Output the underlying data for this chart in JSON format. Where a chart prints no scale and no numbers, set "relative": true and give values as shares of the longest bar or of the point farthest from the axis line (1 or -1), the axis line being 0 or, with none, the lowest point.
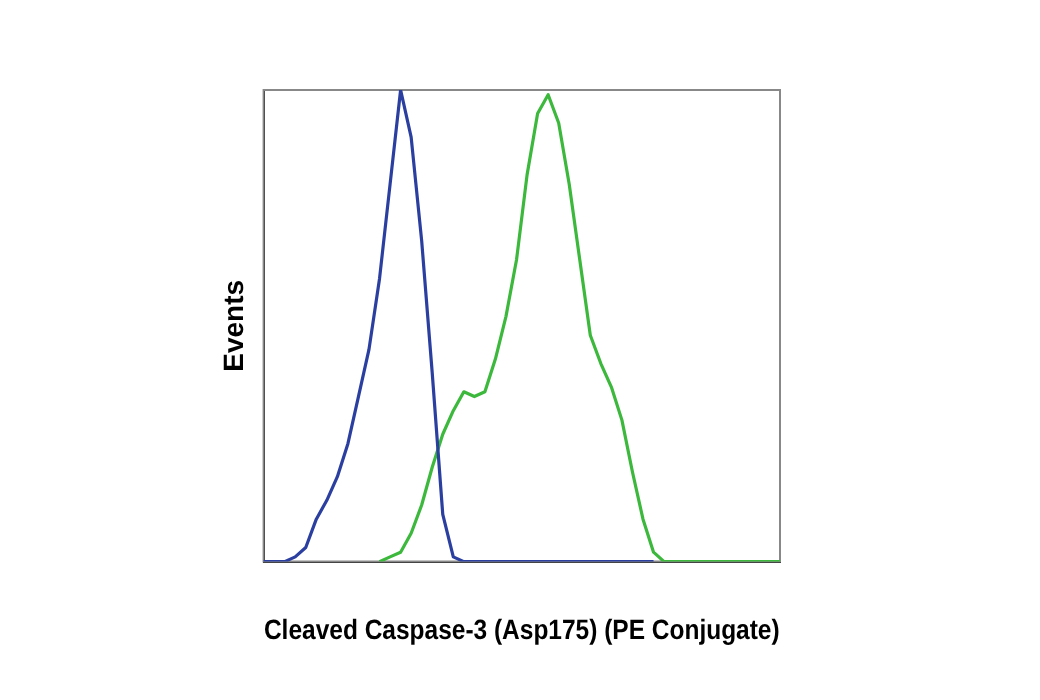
{
  "chart_data": {
    "type": "line",
    "relative": true,
    "xlabel": "Cleaved Caspase-3 (Asp175) (PE Conjugate)",
    "ylabel": "Events",
    "legend": false,
    "grid": false,
    "marker": "none",
    "line_style": "solid",
    "categories": [
      null,
      null,
      null,
      null,
      null,
      null,
      null,
      null,
      null,
      null,
      null,
      null,
      null,
      null,
      null,
      null,
      null,
      null,
      null,
      null,
      null,
      null,
      null,
      null,
      null,
      null,
      null,
      null,
      null,
      null,
      null,
      null,
      null,
      null,
      null,
      null,
      null,
      null,
      null,
      null,
      null,
      null,
      null,
      null,
      null,
      null,
      null,
      null,
      null,
      null
    ],
    "series": [
      {
        "color": "#2b3fa0",
        "values": [
          0,
          0,
          0,
          0.01,
          0.03,
          0.09,
          0.13,
          0.18,
          0.25,
          0.35,
          0.45,
          0.6,
          0.8,
          1,
          0.9,
          0.68,
          0.4,
          0.1,
          0.01,
          0,
          0,
          0,
          0,
          0,
          0,
          0,
          0,
          0,
          0,
          0,
          0,
          0,
          0,
          0,
          0,
          0,
          0,
          0,
          null,
          null,
          null,
          null,
          null,
          null,
          null,
          null,
          null,
          null,
          null,
          null
        ]
      },
      {
        "color": "#3cb83c",
        "values": [
          null,
          null,
          null,
          null,
          null,
          null,
          null,
          null,
          null,
          null,
          null,
          0,
          0.01,
          0.02,
          0.06,
          0.12,
          0.2,
          0.27,
          0.32,
          0.36,
          0.35,
          0.36,
          0.43,
          0.52,
          0.64,
          0.82,
          0.95,
          0.99,
          0.93,
          0.8,
          0.64,
          0.48,
          0.42,
          0.37,
          0.3,
          0.19,
          0.09,
          0.02,
          0,
          0,
          0,
          0,
          0,
          0,
          0,
          0,
          0,
          0,
          0,
          0
        ]
      }
    ]
  }
}
